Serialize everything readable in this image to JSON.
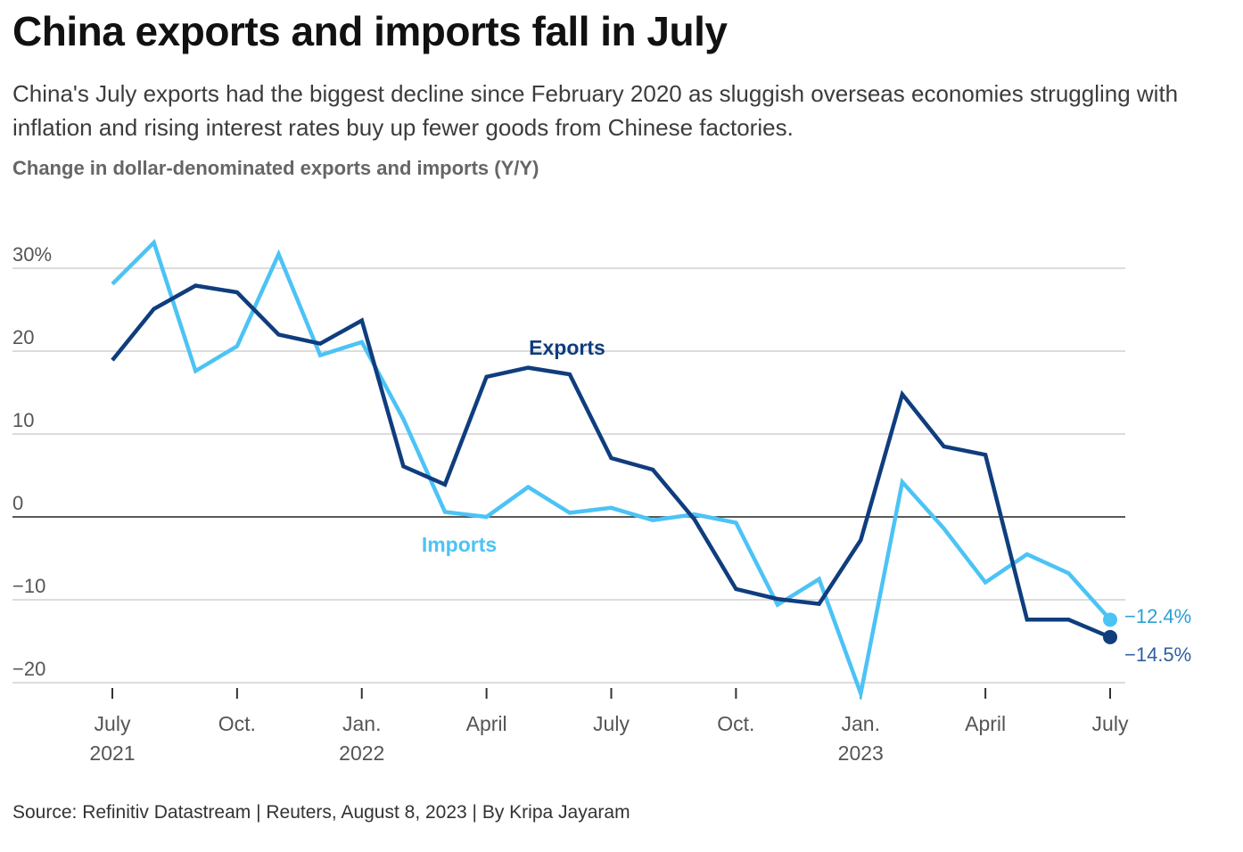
{
  "header": {
    "title": "China exports and imports fall in July",
    "subtitle": "China's July exports had the biggest decline since February 2020 as sluggish overseas economies struggling with inflation and rising interest rates buy up fewer goods from Chinese factories.",
    "caption": "Change in dollar-denominated exports and imports (Y/Y)"
  },
  "footer": {
    "source": "Source: Refinitiv Datastream | Reuters, August 8, 2023 | By Kripa Jayaram"
  },
  "colors": {
    "exports": "#0f3d7e",
    "imports": "#4cc3f5",
    "imports_end_label": "#2aa0d6",
    "exports_end_label": "#2f5fa0",
    "grid": "#c8c8c8",
    "zero_line": "#222222"
  },
  "chart_data": {
    "type": "line",
    "title": "Change in dollar-denominated exports and imports (Y/Y)",
    "xlabel": "",
    "ylabel": "",
    "ylim": [
      -20,
      30
    ],
    "yticks": [
      {
        "value": 30,
        "label": "30%"
      },
      {
        "value": 20,
        "label": "20"
      },
      {
        "value": 10,
        "label": "10"
      },
      {
        "value": 0,
        "label": "0"
      },
      {
        "value": -10,
        "label": "−10"
      },
      {
        "value": -20,
        "label": "−20"
      }
    ],
    "x": [
      "2021-07",
      "2021-08",
      "2021-09",
      "2021-10",
      "2021-11",
      "2021-12",
      "2022-01",
      "2022-02",
      "2022-03",
      "2022-04",
      "2022-05",
      "2022-06",
      "2022-07",
      "2022-08",
      "2022-09",
      "2022-10",
      "2022-11",
      "2022-12",
      "2023-01",
      "2023-02",
      "2023-03",
      "2023-04",
      "2023-05",
      "2023-06",
      "2023-07"
    ],
    "xticks": [
      {
        "index": 0,
        "label": "July",
        "sublabel": "2021"
      },
      {
        "index": 3,
        "label": "Oct.",
        "sublabel": ""
      },
      {
        "index": 6,
        "label": "Jan.",
        "sublabel": "2022"
      },
      {
        "index": 9,
        "label": "April",
        "sublabel": ""
      },
      {
        "index": 12,
        "label": "July",
        "sublabel": ""
      },
      {
        "index": 15,
        "label": "Oct.",
        "sublabel": ""
      },
      {
        "index": 18,
        "label": "Jan.",
        "sublabel": "2023"
      },
      {
        "index": 21,
        "label": "April",
        "sublabel": ""
      },
      {
        "index": 24,
        "label": "July",
        "sublabel": ""
      }
    ],
    "series": [
      {
        "name": "Exports",
        "values": [
          18.9,
          25.1,
          27.9,
          27.1,
          22.0,
          20.9,
          23.7,
          6.1,
          3.9,
          16.9,
          18.0,
          17.2,
          7.1,
          5.7,
          -0.3,
          -8.7,
          -9.9,
          -10.5,
          -2.8,
          14.8,
          8.5,
          7.5,
          -12.4,
          -12.4,
          -14.5
        ],
        "label_text": "Exports",
        "end_label": "−14.5%"
      },
      {
        "name": "Imports",
        "values": [
          28.1,
          33.1,
          17.6,
          20.6,
          31.7,
          19.5,
          21.1,
          11.8,
          0.6,
          0.0,
          3.6,
          0.5,
          1.1,
          -0.4,
          0.3,
          -0.7,
          -10.6,
          -7.5,
          -21.3,
          4.2,
          -1.4,
          -7.9,
          -4.5,
          -6.8,
          -12.4
        ],
        "label_text": "Imports",
        "end_label": "−12.4%"
      }
    ]
  }
}
